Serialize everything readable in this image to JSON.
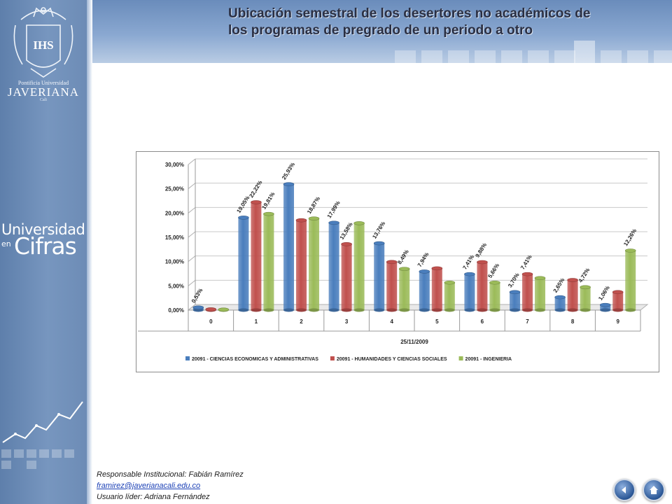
{
  "header": {
    "title_line1": "Ubicación semestral de los desertores no académicos de",
    "title_line2": "los programas de pregrado de un periodo a otro"
  },
  "sidebar": {
    "logo_line1": "Pontificia Universidad",
    "logo_line2": "JAVERIANA",
    "logo_line3": "Cali",
    "crest_letters": "IHS",
    "brand_word1": "Universidad",
    "brand_word2": "en",
    "brand_word3": "Cifras"
  },
  "footer": {
    "responsible": "Responsable  Institucional: Fabián Ramírez",
    "email": "framirez@javerianacali.edu.co",
    "leader": "Usuario líder: Adriana Fernández"
  },
  "nav": {
    "back_icon": "arrow-left-icon",
    "home_icon": "home-icon"
  },
  "chart_data": {
    "type": "bar",
    "categories": [
      "0",
      "1",
      "2",
      "3",
      "4",
      "5",
      "6",
      "7",
      "8",
      "9"
    ],
    "xlabel": "25/11/2009",
    "ylim": [
      0,
      0.3
    ],
    "yticks": [
      "0,00%",
      "5,00%",
      "10,00%",
      "15,00%",
      "20,00%",
      "25,00%",
      "30,00%"
    ],
    "grid": true,
    "legend_position": "bottom",
    "series": [
      {
        "name": "20091 - CIENCIAS ECONOMICAS Y ADMINISTRATIVAS",
        "color": "#4a7ebd",
        "values": [
          0.0053,
          0.1905,
          0.2593,
          0.1799,
          0.1376,
          0.0794,
          0.0741,
          0.037,
          0.0265,
          0.0106
        ],
        "labels": [
          "0,53%",
          "19,05%",
          "25,93%",
          "17,99%",
          "13,76%",
          "7,94%",
          "7,41%",
          "3,70%",
          "2,65%",
          "1,06%"
        ]
      },
      {
        "name": "20091 - HUMANIDADES Y CIENCIAS SOCIALES",
        "color": "#c0504d",
        "values": [
          0.0015,
          0.2222,
          0.185,
          0.1358,
          0.099,
          0.086,
          0.0988,
          0.0741,
          0.062,
          0.037
        ],
        "labels": [
          "",
          "22,22%",
          "",
          "13,58%",
          "",
          "",
          "9,88%",
          "7,41%",
          "",
          ""
        ]
      },
      {
        "name": "20091 - INGENIERIA",
        "color": "#9bbb59",
        "values": [
          0.001,
          0.1981,
          0.1887,
          0.179,
          0.0849,
          0.0566,
          0.0566,
          0.066,
          0.0472,
          0.1226
        ],
        "labels": [
          "",
          "19,81%",
          "18,87%",
          "",
          "8,49%",
          "",
          "5,66%",
          "",
          "4,72%",
          "12,26%"
        ]
      }
    ]
  }
}
